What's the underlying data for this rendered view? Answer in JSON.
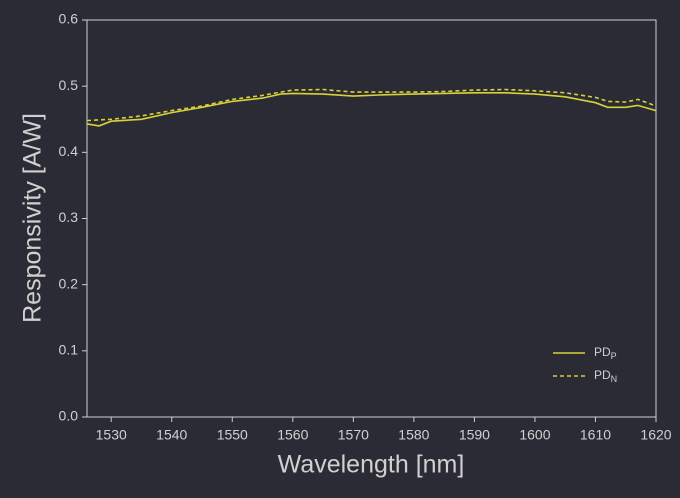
{
  "chart_data": {
    "type": "line",
    "x_label": "Wavelength  [nm]",
    "y_label": "Responsivity  [A/W]",
    "x": [
      1526,
      1528,
      1530,
      1535,
      1540,
      1545,
      1550,
      1555,
      1558,
      1560,
      1565,
      1570,
      1575,
      1580,
      1585,
      1590,
      1595,
      1600,
      1605,
      1610,
      1612,
      1615,
      1617,
      1620
    ],
    "series": [
      {
        "name": "PD",
        "subscript": "P",
        "color": "#d8d23a",
        "dash": false,
        "values": [
          0.443,
          0.44,
          0.447,
          0.45,
          0.46,
          0.468,
          0.477,
          0.482,
          0.488,
          0.489,
          0.488,
          0.485,
          0.487,
          0.488,
          0.489,
          0.49,
          0.49,
          0.488,
          0.484,
          0.475,
          0.468,
          0.468,
          0.471,
          0.463
        ]
      },
      {
        "name": "PD",
        "subscript": "N",
        "color": "#d8d23a",
        "dash": true,
        "values": [
          0.448,
          0.449,
          0.45,
          0.455,
          0.463,
          0.47,
          0.48,
          0.486,
          0.491,
          0.494,
          0.495,
          0.491,
          0.491,
          0.491,
          0.492,
          0.494,
          0.495,
          0.493,
          0.49,
          0.483,
          0.477,
          0.476,
          0.48,
          0.47
        ]
      }
    ],
    "xlim": [
      1526,
      1620
    ],
    "xticks": [
      1530,
      1540,
      1550,
      1560,
      1570,
      1580,
      1590,
      1600,
      1610,
      1620
    ],
    "ylim": [
      0,
      0.6
    ],
    "yticks": [
      {
        "value": 0,
        "label": "0.0"
      },
      0.1,
      0.2,
      0.3,
      0.4,
      0.5,
      0.6
    ],
    "legend": "lower-right"
  }
}
